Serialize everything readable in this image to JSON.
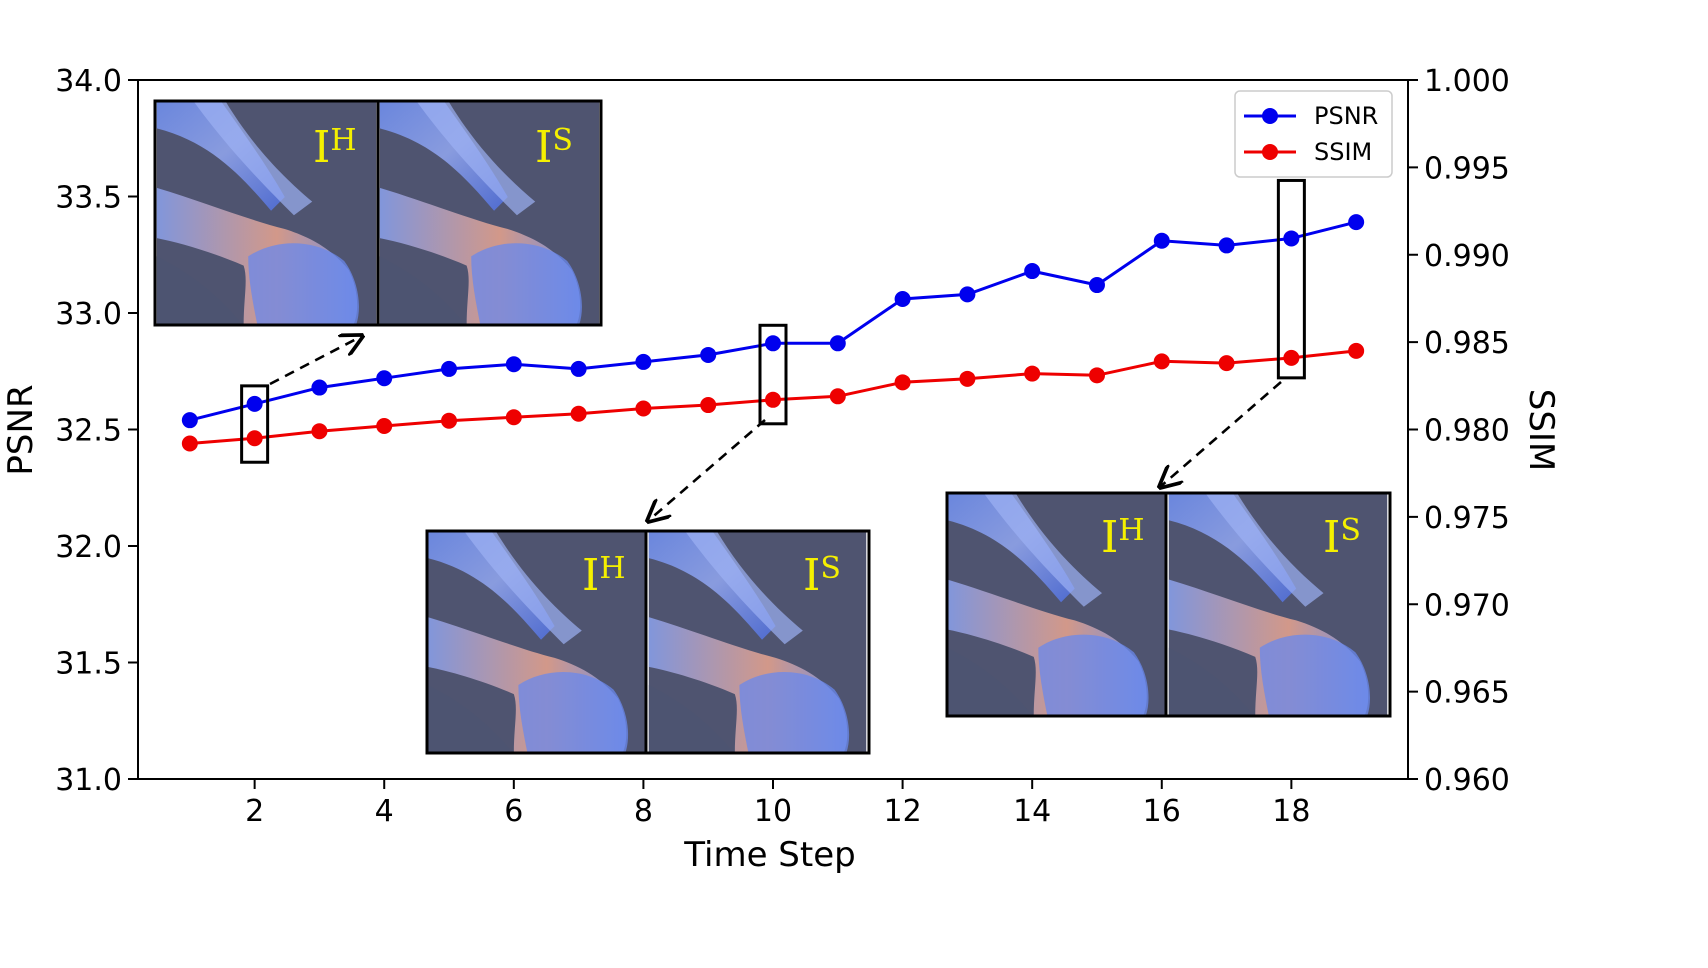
{
  "chart_data": {
    "type": "line",
    "xlabel": "Time Step",
    "ylabel": "PSNR",
    "y2label": "SSIM",
    "xlim": [
      0.2,
      19.8
    ],
    "ylim": [
      31.0,
      34.0
    ],
    "y2lim": [
      0.96,
      1.0
    ],
    "xticks": [
      2,
      4,
      6,
      8,
      10,
      12,
      14,
      16,
      18
    ],
    "yticks": [
      "31.0",
      "31.5",
      "32.0",
      "32.5",
      "33.0",
      "33.5",
      "34.0"
    ],
    "y2ticks": [
      "0.960",
      "0.965",
      "0.970",
      "0.975",
      "0.980",
      "0.985",
      "0.990",
      "0.995",
      "1.000"
    ],
    "x": [
      1,
      2,
      3,
      4,
      5,
      6,
      7,
      8,
      9,
      10,
      11,
      12,
      13,
      14,
      15,
      16,
      17,
      18,
      19
    ],
    "series": [
      {
        "name": "PSNR",
        "axis": "left",
        "color": "#0000ee",
        "values": [
          32.54,
          32.61,
          32.68,
          32.72,
          32.76,
          32.78,
          32.76,
          32.79,
          32.82,
          32.87,
          32.87,
          33.06,
          33.08,
          33.18,
          33.12,
          33.31,
          33.29,
          33.32,
          33.39
        ]
      },
      {
        "name": "SSIM",
        "axis": "right",
        "color": "#ee0000",
        "values": [
          0.9792,
          0.9795,
          0.9799,
          0.9802,
          0.9805,
          0.9807,
          0.9809,
          0.9812,
          0.9814,
          0.9817,
          0.9819,
          0.9827,
          0.9829,
          0.9832,
          0.9831,
          0.9839,
          0.9838,
          0.9841,
          0.9845
        ]
      }
    ],
    "legend": {
      "position": "top-right",
      "entries": [
        "PSNR",
        "SSIM"
      ]
    },
    "grid": false,
    "highlights": [
      2,
      10,
      18
    ],
    "insets": [
      {
        "step": 2,
        "labels": [
          "I",
          "I"
        ],
        "superscripts": [
          "H",
          "S"
        ]
      },
      {
        "step": 10,
        "labels": [
          "I",
          "I"
        ],
        "superscripts": [
          "H",
          "S"
        ]
      },
      {
        "step": 18,
        "labels": [
          "I",
          "I"
        ],
        "superscripts": [
          "H",
          "S"
        ]
      }
    ],
    "colors": {
      "inset_background": "#4f5470",
      "inset_label": "#f5f000",
      "plume": "#5c7fe6"
    }
  }
}
